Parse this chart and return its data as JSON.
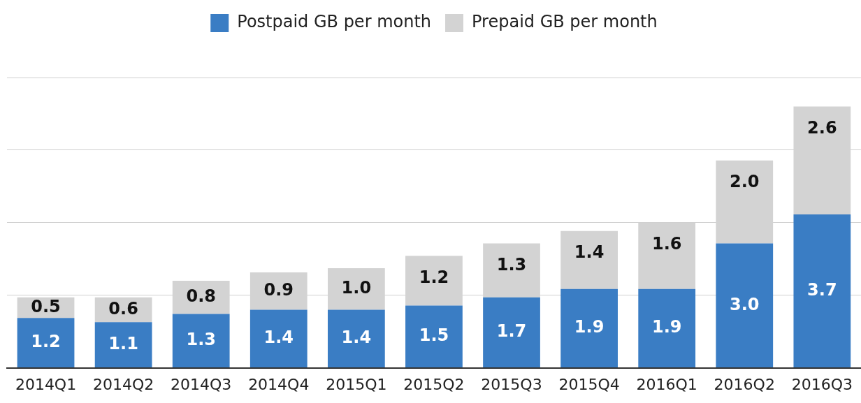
{
  "chart_data": {
    "type": "bar",
    "stacked": true,
    "legend": "top",
    "grid": "y",
    "tick_labels": "x",
    "categories": [
      "2014Q1",
      "2014Q2",
      "2014Q3",
      "2014Q4",
      "2015Q1",
      "2015Q2",
      "2015Q3",
      "2015Q4",
      "2016Q1",
      "2016Q2",
      "2016Q3"
    ],
    "ylim": [
      0,
      7
    ],
    "yticks": [
      {
        "value": 0,
        "label": null
      },
      {
        "value": 1.75,
        "label": null
      },
      {
        "value": 3.5,
        "label": null
      },
      {
        "value": 5.25,
        "label": null
      },
      {
        "value": 7,
        "label": null
      }
    ],
    "series": [
      {
        "name": "Postpaid GB per month",
        "color": "#3a7dc4",
        "values": [
          1.2,
          1.1,
          1.3,
          1.4,
          1.4,
          1.5,
          1.7,
          1.9,
          1.9,
          3.0,
          3.7
        ],
        "value_labels": [
          "1.2",
          "1.1",
          "1.3",
          "1.4",
          "1.4",
          "1.5",
          "1.7",
          "1.9",
          "1.9",
          "3.0",
          "3.7"
        ]
      },
      {
        "name": "Prepaid GB per month",
        "color": "#d3d3d3",
        "values": [
          0.5,
          0.6,
          0.8,
          0.9,
          1.0,
          1.2,
          1.3,
          1.4,
          1.6,
          2.0,
          2.6
        ],
        "value_labels": [
          "0.5",
          "0.6",
          "0.8",
          "0.9",
          "1.0",
          "1.2",
          "1.3",
          "1.4",
          "1.6",
          "2.0",
          "2.6"
        ]
      }
    ]
  }
}
